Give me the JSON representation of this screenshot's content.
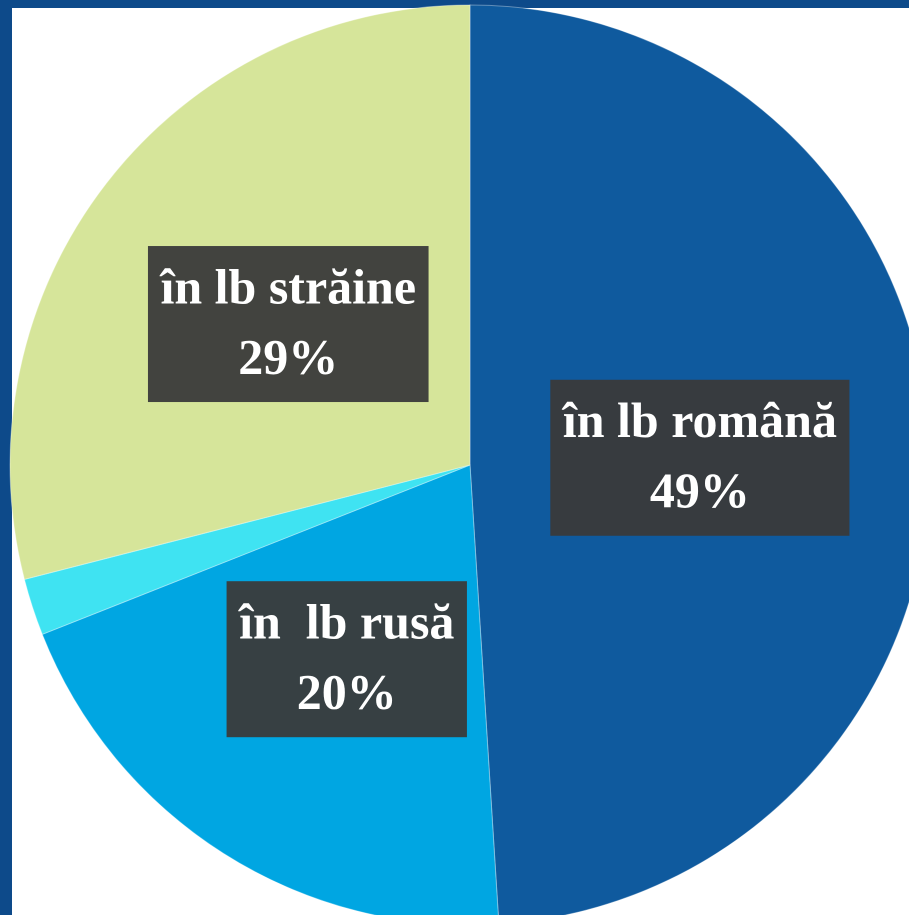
{
  "chart_data": {
    "type": "pie",
    "categories": [
      "în lb română",
      "în  lb rusă",
      null,
      "în lb străine"
    ],
    "values": [
      49,
      20,
      2,
      29
    ],
    "value_labels": [
      "49%",
      "20%",
      null,
      "29%"
    ],
    "colors": [
      "#0f5a9e",
      "#00a6e2",
      "#3fe3f2",
      "#d6e59a"
    ],
    "start_angle": 0,
    "direction": "clockwise"
  }
}
